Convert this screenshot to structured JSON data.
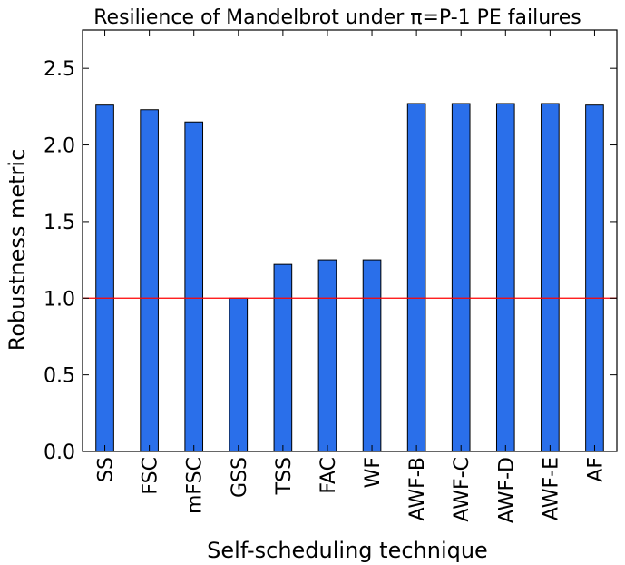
{
  "chart_data": {
    "type": "bar",
    "title": "Resilience of Mandelbrot under π=P-1 PE failures",
    "xlabel": "Self-scheduling technique",
    "ylabel": "Robustness metric",
    "categories": [
      "SS",
      "FSC",
      "mFSC",
      "GSS",
      "TSS",
      "FAC",
      "WF",
      "AWF-B",
      "AWF-C",
      "AWF-D",
      "AWF-E",
      "AF"
    ],
    "values": [
      2.26,
      2.23,
      2.15,
      1.0,
      1.22,
      1.25,
      1.25,
      2.27,
      2.27,
      2.27,
      2.27,
      2.26
    ],
    "ylim": [
      0.0,
      2.75
    ],
    "yticks": [
      0.0,
      0.5,
      1.0,
      1.5,
      2.0,
      2.5
    ],
    "ytick_labels": [
      "0.0",
      "0.5",
      "1.0",
      "1.5",
      "2.0",
      "2.5"
    ],
    "reference_line": {
      "y": 1.0,
      "color": "#ff0000"
    },
    "bar_color": "#2a6fea",
    "grid": false,
    "legend": "none"
  }
}
